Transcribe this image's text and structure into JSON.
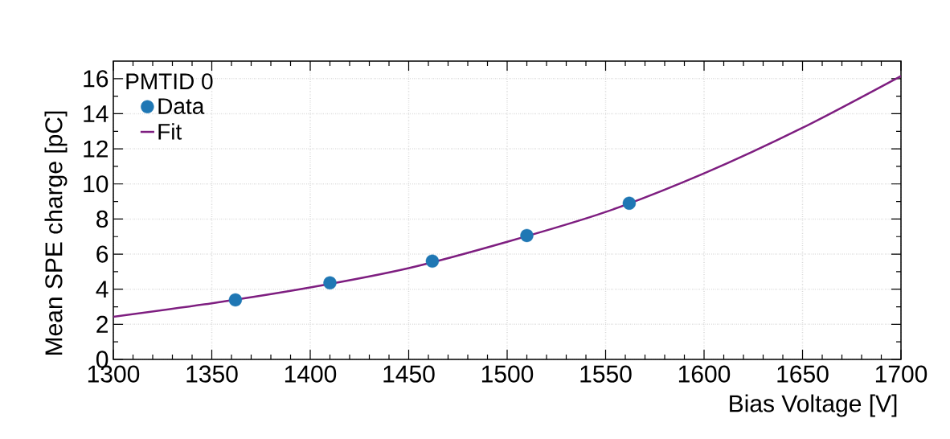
{
  "chart_data": {
    "type": "line",
    "xlabel": "Bias Voltage [V]",
    "ylabel": "Mean SPE charge [pC]",
    "legend_title": "PMTID 0",
    "series": [
      {
        "name": "Data",
        "type": "scatter",
        "marker": "circle",
        "color": "#1f77b4",
        "x": [
          1362,
          1410,
          1462,
          1510,
          1562
        ],
        "values": [
          3.39,
          4.36,
          5.6,
          7.06,
          8.9
        ]
      },
      {
        "name": "Fit",
        "color": "#7e1e80",
        "x": [
          1300,
          1350,
          1400,
          1450,
          1500,
          1550,
          1600,
          1650,
          1700
        ],
        "values": [
          2.43,
          3.2,
          4.1,
          5.2,
          6.7,
          8.4,
          10.6,
          13.2,
          16.15
        ]
      }
    ],
    "xlim": [
      1300,
      1700
    ],
    "xticks": [
      1300,
      1350,
      1400,
      1450,
      1500,
      1550,
      1600,
      1650,
      1700
    ],
    "ylim": [
      0,
      17
    ],
    "yticks": [
      0,
      2,
      4,
      6,
      8,
      10,
      12,
      14,
      16
    ],
    "grid": true,
    "legend": "top left"
  }
}
